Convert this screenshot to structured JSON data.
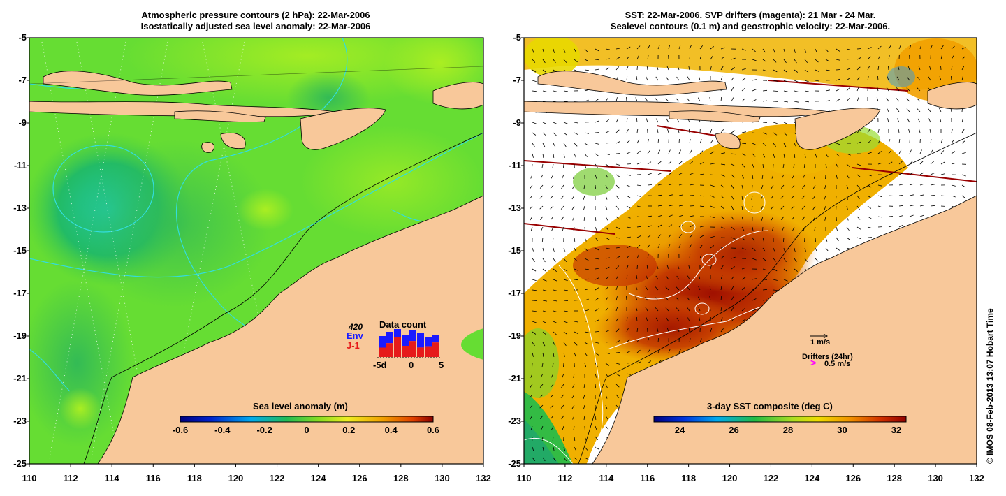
{
  "left_panel": {
    "title_line1": "Atmospheric pressure contours (2 hPa): 22-Mar-2006",
    "title_line2": "Isostatically adjusted sea level anomaly: 22-Mar-2006",
    "colorbar": {
      "label": "Sea level anomaly (m)",
      "ticks": [
        "-0.6",
        "-0.4",
        "-0.2",
        "0",
        "0.2",
        "0.4",
        "0.6"
      ]
    },
    "data_count": {
      "title": "Data count",
      "total": "420",
      "env_label": "Env",
      "j1_label": "J-1",
      "axis_ticks": [
        "-5d",
        "0",
        "5"
      ],
      "env_color": "#1a1aff",
      "j1_color": "#e61a1a",
      "bars": [
        {
          "env": 1.0,
          "j1": 0.45
        },
        {
          "env": 1.0,
          "j1": 0.55
        },
        {
          "env": 1.0,
          "j1": 0.7
        },
        {
          "env": 1.0,
          "j1": 0.5
        },
        {
          "env": 1.0,
          "j1": 0.6
        },
        {
          "env": 1.0,
          "j1": 0.4
        },
        {
          "env": 1.0,
          "j1": 0.55
        },
        {
          "env": 1.0,
          "j1": 0.65
        }
      ]
    }
  },
  "right_panel": {
    "title_line1": "SST: 22-Mar-2006. SVP drifters (magenta): 21 Mar - 24 Mar.",
    "title_line2": "Sealevel contours (0.1 m) and geostrophic velocity: 22-Mar-2006.",
    "colorbar": {
      "label": "3-day SST composite (deg C)",
      "ticks": [
        "24",
        "26",
        "28",
        "30",
        "32"
      ]
    },
    "velocity_key": "1 m/s",
    "drifters_key": "Drifters (24hr)",
    "drifters_speed": "0.5 m/s",
    "drifter_color": "#ff00ff"
  },
  "axes": {
    "y_ticks": [
      "-5",
      "-7",
      "-9",
      "-11",
      "-13",
      "-15",
      "-17",
      "-19",
      "-21",
      "-23",
      "-25"
    ],
    "x_ticks": [
      "110",
      "112",
      "114",
      "116",
      "118",
      "120",
      "122",
      "124",
      "126",
      "128",
      "130",
      "132"
    ]
  },
  "credit": "© IMOS 08-Feb-2013 13:07 Hobart Time",
  "colors": {
    "land": "#f8c89a",
    "sla_base": "#66dd33",
    "sst_warm": "#cc3300"
  }
}
